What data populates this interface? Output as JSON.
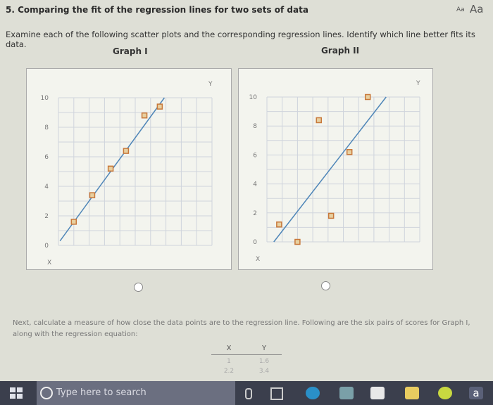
{
  "header": {
    "title": "5. Comparing the fit of the regression lines for two sets of data",
    "font_small": "Aa",
    "font_large": "Aa"
  },
  "instructions": "Examine each of the following scatter plots and the corresponding regression lines. Identify which line better fits its data.",
  "chart_data": [
    {
      "type": "scatter",
      "title": "Graph I",
      "xlabel": "X",
      "ylabel": "Y",
      "xlim": [
        0,
        10
      ],
      "ylim": [
        0,
        10
      ],
      "yticks": [
        "0",
        "2",
        "4",
        "6",
        "8",
        "10"
      ],
      "grid": true,
      "x": [
        1,
        2.2,
        3.4,
        4.4,
        5.6,
        6.6
      ],
      "y": [
        1.6,
        3.4,
        5.2,
        6.4,
        8.8,
        9.4
      ],
      "regression_line": {
        "from": [
          0.1,
          0.3
        ],
        "to": [
          6.9,
          10
        ]
      },
      "point_color": "#c8783a",
      "line_color": "#4f86b8"
    },
    {
      "type": "scatter",
      "title": "Graph II",
      "xlabel": "X",
      "ylabel": "Y",
      "xlim": [
        0,
        10
      ],
      "ylim": [
        0,
        10
      ],
      "yticks": [
        "0",
        "2",
        "4",
        "6",
        "8",
        "10"
      ],
      "grid": true,
      "x": [
        0.8,
        2.0,
        3.4,
        4.2,
        5.4,
        6.6
      ],
      "y": [
        1.2,
        0,
        8.4,
        1.8,
        6.2,
        10
      ],
      "regression_line": {
        "from": [
          0.45,
          0
        ],
        "to": [
          7.8,
          10
        ]
      },
      "point_color": "#c8783a",
      "line_color": "#4f86b8"
    }
  ],
  "next_text": "Next, calculate a measure of how close the data points are to the regression line. Following are the six pairs of scores for Graph I, along with the regression equation:",
  "table": {
    "headers": [
      "X",
      "Y"
    ],
    "rows": [
      [
        "1",
        "1.6"
      ],
      [
        "2.2",
        "3.4"
      ]
    ]
  },
  "taskbar": {
    "search_placeholder": "Type here to search",
    "icons": [
      "windows-start",
      "microphone",
      "task-view",
      "edge",
      "file-explorer",
      "store",
      "sticky-notes",
      "spotify",
      "amazon"
    ]
  }
}
